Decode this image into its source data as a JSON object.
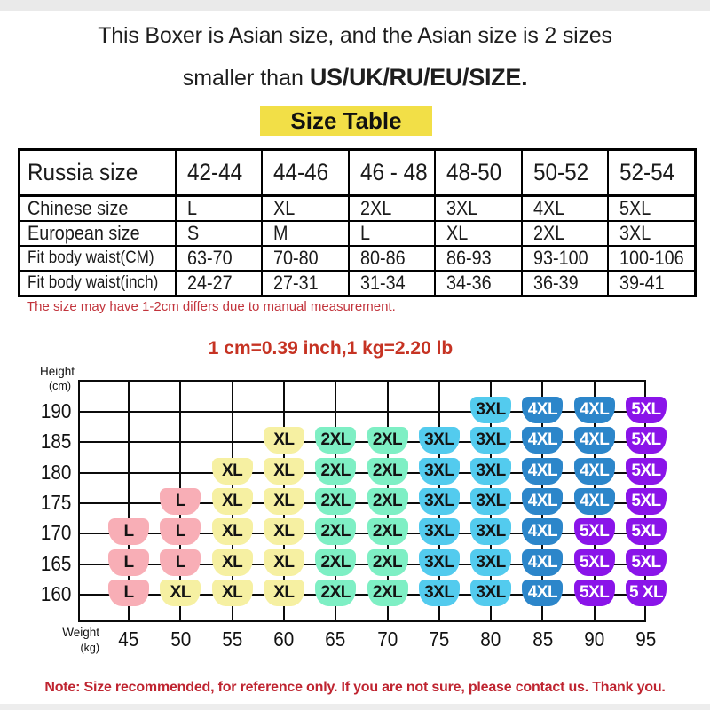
{
  "header": {
    "line1": "This Boxer is Asian size, and the Asian size is 2 sizes",
    "line2_normal": "smaller than ",
    "line2_bold": "US/UK/RU/EU/SIZE."
  },
  "size_table": {
    "title": "Size Table",
    "rows": [
      {
        "label": "Russia size",
        "values": [
          "42-44",
          "44-46",
          "46 - 48",
          "48-50",
          "50-52",
          "52-54"
        ]
      },
      {
        "label": "Chinese size",
        "values": [
          "L",
          "XL",
          "2XL",
          "3XL",
          "4XL",
          "5XL"
        ]
      },
      {
        "label": "European size",
        "values": [
          "S",
          "M",
          "L",
          "XL",
          "2XL",
          "3XL"
        ]
      },
      {
        "label": "Fit body waist(CM)",
        "values": [
          "63-70",
          "70-80",
          "80-86",
          "86-93",
          "93-100",
          "100-106"
        ]
      },
      {
        "label": "Fit body waist(inch)",
        "values": [
          "24-27",
          "27-31",
          "31-34",
          "34-36",
          "36-39",
          "39-41"
        ]
      }
    ]
  },
  "notes": {
    "measurement": "The size may have 1-2cm differs due to manual measurement.",
    "conversion": "1 cm=0.39 inch,1 kg=2.20 lb",
    "bottom": "Note: Size recommended, for reference only. If you are not sure, please contact us. Thank you."
  },
  "colors": {
    "badge_bg": "#F2DF47",
    "measurement_note_red": "#C2343C",
    "conversion_red": "#C63323",
    "bottom_note_red": "#BF2430",
    "grid_black": "#0B0B0B"
  },
  "chart_data": {
    "type": "heatmap",
    "title": "",
    "grid": true,
    "legend": "none",
    "y_axis": {
      "label_line1": "Height",
      "label_line2": "(cm)",
      "ticks": [
        190,
        185,
        180,
        175,
        170,
        165,
        160
      ]
    },
    "x_axis": {
      "label_line1": "Weight",
      "label_line2": "(kg)",
      "ticks": [
        45,
        50,
        55,
        60,
        65,
        70,
        75,
        80,
        85,
        90,
        95
      ]
    },
    "rows": [
      {
        "height": 190,
        "cells": [
          null,
          null,
          null,
          null,
          null,
          null,
          null,
          "3XL",
          "4XL",
          "4XL",
          "5XL"
        ]
      },
      {
        "height": 185,
        "cells": [
          null,
          null,
          null,
          "XL",
          "2XL",
          "2XL",
          "3XL",
          "3XL",
          "4XL",
          "4XL",
          "5XL"
        ]
      },
      {
        "height": 180,
        "cells": [
          null,
          null,
          "XL",
          "XL",
          "2XL",
          "2XL",
          "3XL",
          "3XL",
          "4XL",
          "4XL",
          "5XL"
        ]
      },
      {
        "height": 175,
        "cells": [
          null,
          "L",
          "XL",
          "XL",
          "2XL",
          "2XL",
          "3XL",
          "3XL",
          "4XL",
          "4XL",
          "5XL"
        ]
      },
      {
        "height": 170,
        "cells": [
          "L",
          "L",
          "XL",
          "XL",
          "2XL",
          "2XL",
          "3XL",
          "3XL",
          "4XL",
          "5XL",
          "5XL"
        ]
      },
      {
        "height": 165,
        "cells": [
          "L",
          "L",
          "XL",
          "XL",
          "2XL",
          "2XL",
          "3XL",
          "3XL",
          "4XL",
          "5XL",
          "5XL"
        ]
      },
      {
        "height": 160,
        "cells": [
          "L",
          "XL",
          "XL",
          "XL",
          "2XL",
          "2XL",
          "3XL",
          "3XL",
          "4XL",
          "5XL",
          "5 XL"
        ]
      }
    ],
    "size_colors": {
      "L": {
        "bg": "#F8AEB6",
        "text": "#141414"
      },
      "XL": {
        "bg": "#F6F0A2",
        "text": "#141414"
      },
      "2XL": {
        "bg": "#7EEFC4",
        "text": "#141414"
      },
      "3XL": {
        "bg": "#53CBEE",
        "text": "#141414"
      },
      "4XL": {
        "bg": "#2C86CA",
        "text": "#FFFFFF"
      },
      "5XL": {
        "bg": "#8A14E9",
        "text": "#FFFFFF"
      }
    }
  }
}
